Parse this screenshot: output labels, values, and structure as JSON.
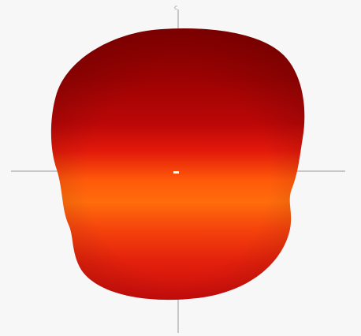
{
  "scene": {
    "background_color": "#f7f7f8",
    "axis_color": "#9a9aa0",
    "origin_marker_color": "#ffffff",
    "surface_colors": {
      "top": "#8f0000",
      "upper": "#b20505",
      "middle_red": "#e01e0c",
      "orange_band": "#ff6a0a",
      "lower_orange": "#f43a0c",
      "bottom": "#d00d0b"
    },
    "axis_tick_label": "c"
  }
}
